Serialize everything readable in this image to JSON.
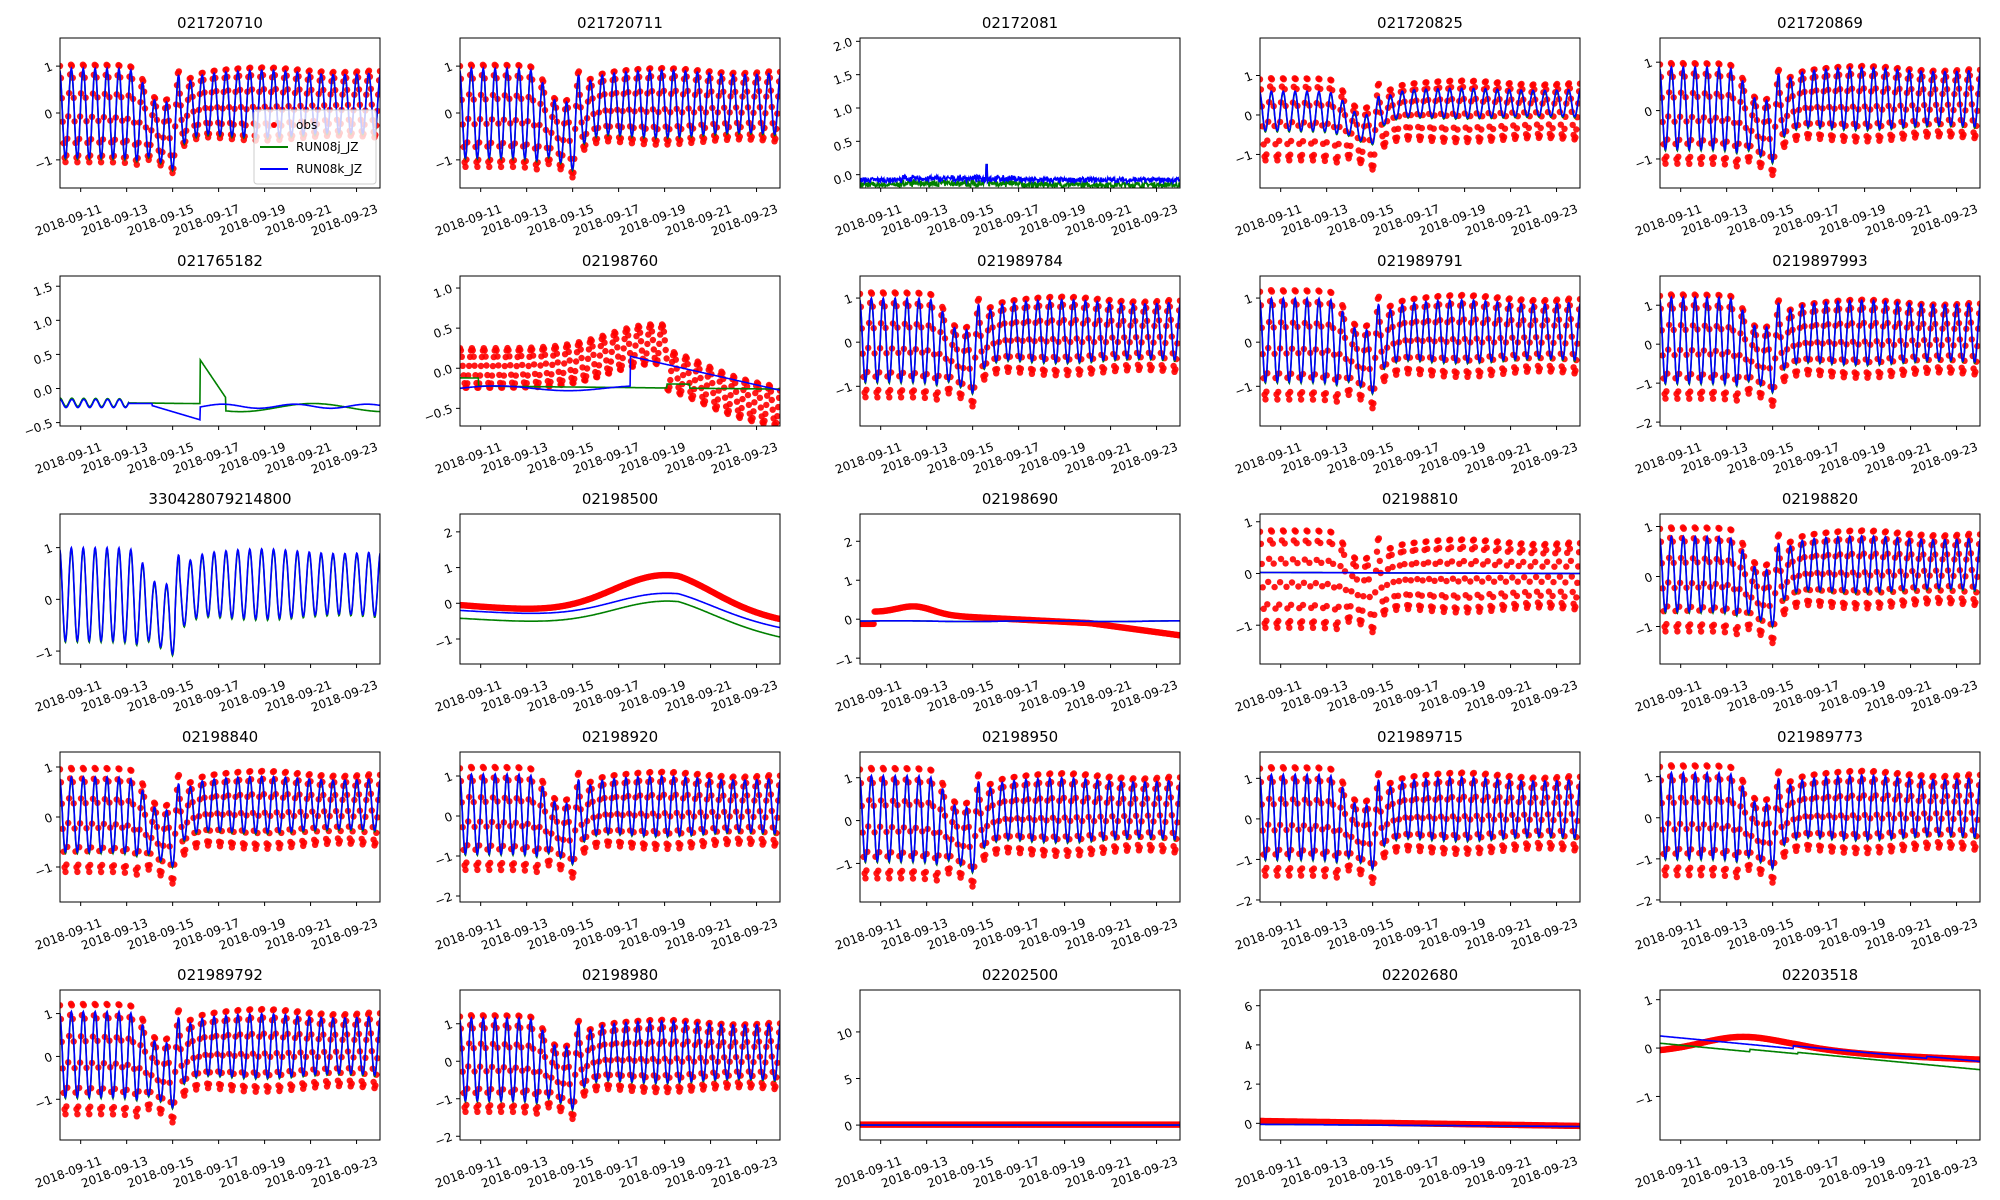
{
  "chart_data": {
    "type": "line",
    "layout": "grid 5x5 subplots",
    "legend": {
      "location": "lower-right of first subplot",
      "entries": [
        {
          "label": "obs",
          "style": "marker",
          "color": "#ff0000"
        },
        {
          "label": "RUN08j_JZ",
          "style": "line",
          "color": "#008000"
        },
        {
          "label": "RUN08k_JZ",
          "style": "line",
          "color": "#0000ff"
        }
      ]
    },
    "x": {
      "type": "datetime",
      "range": [
        "2018-09-10T00:00",
        "2018-09-23T22:00"
      ],
      "tick_labels": [
        "2018-09-11",
        "2018-09-13",
        "2018-09-15",
        "2018-09-17",
        "2018-09-19",
        "2018-09-21",
        "2018-09-23"
      ],
      "tick_label_rotation_deg": 20
    },
    "series_colors": {
      "obs": "#ff0000",
      "RUN08j_JZ": "#008000",
      "RUN08k_JZ": "#0000ff"
    },
    "panels": [
      {
        "title": "021720710",
        "ylim": [
          -1.6,
          1.6
        ],
        "yticks": [
          -1,
          0,
          1
        ],
        "kind": "tidal",
        "obs": true,
        "j": true,
        "k": true,
        "amp": 0.95,
        "obs_amp": 1.05,
        "mean": 0.0,
        "obs_mean": 0.0,
        "legend": true
      },
      {
        "title": "021720711",
        "ylim": [
          -1.6,
          1.6
        ],
        "yticks": [
          -1,
          0,
          1
        ],
        "kind": "tidal",
        "obs": true,
        "j": true,
        "k": true,
        "amp": 0.95,
        "obs_amp": 1.1,
        "mean": 0.0,
        "obs_mean": -0.05
      },
      {
        "title": "02172081",
        "ylim": [
          -0.2,
          2.05
        ],
        "yticks": [
          0.0,
          0.5,
          1.0,
          1.5,
          2.0
        ],
        "tick_fmt": "1f",
        "kind": "noise",
        "obs": false,
        "j": true,
        "k": true,
        "mean": -0.1,
        "spike": {
          "day": 5.5,
          "value": 0.15
        }
      },
      {
        "title": "021720825",
        "ylim": [
          -1.85,
          1.95
        ],
        "yticks": [
          -1,
          0,
          1
        ],
        "kind": "tidal",
        "obs": true,
        "j": true,
        "k": true,
        "amp": 0.5,
        "obs_amp": 1.05,
        "mean": 0.1,
        "obs_mean": -0.1
      },
      {
        "title": "021720869",
        "ylim": [
          -1.6,
          1.5
        ],
        "yticks": [
          -1,
          0,
          1
        ],
        "kind": "tidal",
        "obs": true,
        "j": true,
        "k": true,
        "amp": 0.85,
        "obs_amp": 1.05,
        "mean": 0.05,
        "obs_mean": -0.05
      },
      {
        "title": "021765182",
        "ylim": [
          -0.55,
          1.65
        ],
        "yticks": [
          -0.5,
          0.0,
          0.5,
          1.0,
          1.5
        ],
        "tick_fmt": "1f",
        "kind": "smooth",
        "obs": false,
        "j": true,
        "k": true,
        "j_spike": {
          "day": 6.1,
          "value": 0.42
        }
      },
      {
        "title": "02198760",
        "ylim": [
          -0.72,
          1.15
        ],
        "yticks": [
          -0.5,
          0.0,
          0.5,
          1.0
        ],
        "tick_fmt": "1f",
        "kind": "slow_tidal",
        "obs": true,
        "j": true,
        "k": true,
        "obs_amp": 0.25,
        "k_jump": {
          "day": 7.4,
          "value": 0.15
        }
      },
      {
        "title": "021989784",
        "ylim": [
          -1.9,
          1.5
        ],
        "yticks": [
          -1,
          0,
          1
        ],
        "kind": "tidal",
        "obs": true,
        "j": true,
        "k": true,
        "amp": 0.95,
        "obs_amp": 1.2,
        "mean": 0.05,
        "obs_mean": -0.05
      },
      {
        "title": "021989791",
        "ylim": [
          -1.9,
          1.5
        ],
        "yticks": [
          -1,
          0,
          1
        ],
        "kind": "tidal",
        "obs": true,
        "j": true,
        "k": true,
        "amp": 0.95,
        "obs_amp": 1.25,
        "mean": 0.05,
        "obs_mean": -0.05
      },
      {
        "title": "0219897993",
        "ylim": [
          -2.1,
          1.75
        ],
        "yticks": [
          -2,
          -1,
          0,
          1
        ],
        "kind": "tidal",
        "obs": true,
        "j": true,
        "k": true,
        "amp": 1.1,
        "obs_amp": 1.35,
        "mean": 0.1,
        "obs_mean": -0.05
      },
      {
        "title": "330428079214800",
        "ylim": [
          -1.25,
          1.65
        ],
        "yticks": [
          -1,
          0,
          1
        ],
        "kind": "tidal",
        "obs": false,
        "j": true,
        "k": true,
        "amp": 0.9,
        "mean": 0.1
      },
      {
        "title": "02198500",
        "ylim": [
          -1.7,
          2.5
        ],
        "yticks": [
          -1,
          0,
          1,
          2
        ],
        "kind": "river",
        "obs": true,
        "j": true,
        "k": true
      },
      {
        "title": "02198690",
        "ylim": [
          -1.15,
          2.7
        ],
        "yticks": [
          -1,
          0,
          1,
          2
        ],
        "kind": "river2",
        "obs": true,
        "j": true,
        "k": true
      },
      {
        "title": "02198810",
        "ylim": [
          -1.75,
          1.15
        ],
        "yticks": [
          -1,
          0,
          1
        ],
        "kind": "tidal_flat",
        "obs": true,
        "j": true,
        "k": true,
        "obs_amp": 0.95,
        "obs_mean": -0.1
      },
      {
        "title": "02198820",
        "ylim": [
          -1.75,
          1.25
        ],
        "yticks": [
          -1,
          0,
          1
        ],
        "kind": "tidal",
        "obs": true,
        "j": true,
        "k": true,
        "amp": 0.75,
        "obs_amp": 1.05,
        "mean": 0.05,
        "obs_mean": -0.05
      },
      {
        "title": "02198840",
        "ylim": [
          -1.7,
          1.3
        ],
        "yticks": [
          -1,
          0,
          1
        ],
        "kind": "tidal",
        "obs": true,
        "j": true,
        "k": true,
        "amp": 0.75,
        "obs_amp": 1.05,
        "mean": 0.05,
        "obs_mean": -0.05
      },
      {
        "title": "02198920",
        "ylim": [
          -2.15,
          1.6
        ],
        "yticks": [
          -2,
          -1,
          0,
          1
        ],
        "kind": "tidal",
        "obs": true,
        "j": true,
        "k": true,
        "amp": 1.0,
        "obs_amp": 1.3,
        "mean": 0.05,
        "obs_mean": -0.05
      },
      {
        "title": "02198950",
        "ylim": [
          -1.9,
          1.6
        ],
        "yticks": [
          -1,
          0,
          1
        ],
        "kind": "tidal",
        "obs": true,
        "j": true,
        "k": true,
        "amp": 1.0,
        "obs_amp": 1.3,
        "mean": 0.05,
        "obs_mean": -0.05
      },
      {
        "title": "021989715",
        "ylim": [
          -2.05,
          1.65
        ],
        "yticks": [
          -2,
          -1,
          0,
          1
        ],
        "kind": "tidal",
        "obs": true,
        "j": true,
        "k": true,
        "amp": 1.05,
        "obs_amp": 1.35,
        "mean": 0.05,
        "obs_mean": -0.05
      },
      {
        "title": "021989773",
        "ylim": [
          -2.05,
          1.6
        ],
        "yticks": [
          -2,
          -1,
          0,
          1
        ],
        "kind": "tidal",
        "obs": true,
        "j": true,
        "k": true,
        "amp": 1.05,
        "obs_amp": 1.35,
        "mean": 0.05,
        "obs_mean": -0.05
      },
      {
        "title": "021989792",
        "ylim": [
          -1.95,
          1.55
        ],
        "yticks": [
          -1,
          0,
          1
        ],
        "kind": "tidal",
        "obs": true,
        "j": true,
        "k": true,
        "amp": 1.0,
        "obs_amp": 1.3,
        "mean": 0.05,
        "obs_mean": -0.05
      },
      {
        "title": "02198980",
        "ylim": [
          -2.1,
          1.9
        ],
        "yticks": [
          -2,
          -1,
          0,
          1
        ],
        "kind": "tidal",
        "obs": true,
        "j": true,
        "k": true,
        "amp": 1.1,
        "obs_amp": 1.3,
        "mean": 0.05,
        "obs_mean": -0.05
      },
      {
        "title": "02202500",
        "ylim": [
          -1.6,
          14.5
        ],
        "yticks": [
          0,
          5,
          10
        ],
        "kind": "flat",
        "obs": true,
        "j": true,
        "k": true,
        "level": 0.0
      },
      {
        "title": "02202680",
        "ylim": [
          -0.85,
          6.8
        ],
        "yticks": [
          0,
          2,
          4,
          6
        ],
        "kind": "flat2",
        "obs": true,
        "j": true,
        "k": true,
        "level": 0.0
      },
      {
        "title": "02203518",
        "ylim": [
          -1.9,
          1.2
        ],
        "yticks": [
          -1,
          0,
          1
        ],
        "kind": "drift",
        "obs": true,
        "j": true,
        "k": true
      }
    ]
  }
}
